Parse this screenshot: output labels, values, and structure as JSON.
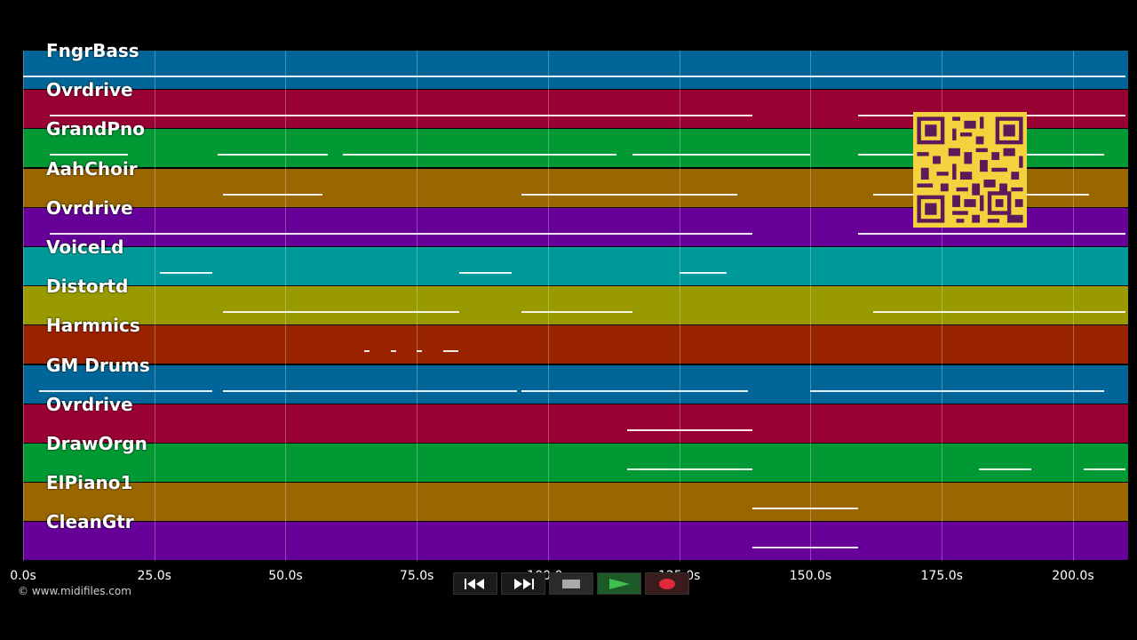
{
  "tracks": [
    {
      "name": "FngrBass",
      "color": "#006699"
    },
    {
      "name": "Ovrdrive",
      "color": "#990033"
    },
    {
      "name": "GrandPno",
      "color": "#009933"
    },
    {
      "name": "AahChoir",
      "color": "#996600"
    },
    {
      "name": "Ovrdrive",
      "color": "#660099"
    },
    {
      "name": "VoiceLd",
      "color": "#009999"
    },
    {
      "name": "Distortd",
      "color": "#999900"
    },
    {
      "name": "Harmnics",
      "color": "#992200"
    },
    {
      "name": "GM Drums",
      "color": "#006699"
    },
    {
      "name": "Ovrdrive",
      "color": "#990033"
    },
    {
      "name": "DrawOrgn",
      "color": "#009933"
    },
    {
      "name": "ElPiano1",
      "color": "#996600"
    },
    {
      "name": "CleanGtr",
      "color": "#660099"
    }
  ],
  "timeline": {
    "ticks": [
      "0.0s",
      "25.0s",
      "50.0s",
      "75.0s",
      "100.0s",
      "125.0s",
      "150.0s",
      "175.0s",
      "200.0s"
    ],
    "tick_values": [
      0,
      25,
      50,
      75,
      100,
      125,
      150,
      175,
      200
    ],
    "max_seconds": 210.5
  },
  "notes": [
    {
      "track": 0,
      "segments": [
        [
          0,
          210
        ]
      ]
    },
    {
      "track": 1,
      "segments": [
        [
          5,
          139
        ],
        [
          159,
          210
        ]
      ]
    },
    {
      "track": 2,
      "segments": [
        [
          5,
          20
        ],
        [
          37,
          58
        ],
        [
          61,
          113
        ],
        [
          116,
          150
        ],
        [
          159,
          206
        ]
      ]
    },
    {
      "track": 3,
      "segments": [
        [
          38,
          57
        ],
        [
          95,
          136
        ],
        [
          162,
          203
        ]
      ]
    },
    {
      "track": 4,
      "segments": [
        [
          5,
          139
        ],
        [
          159,
          210
        ]
      ]
    },
    {
      "track": 5,
      "segments": [
        [
          26,
          36
        ],
        [
          83,
          93
        ],
        [
          125,
          134
        ]
      ]
    },
    {
      "track": 6,
      "segments": [
        [
          38,
          83
        ],
        [
          95,
          116
        ],
        [
          162,
          210
        ]
      ]
    },
    {
      "track": 7,
      "segments": [
        [
          65,
          66
        ],
        [
          70,
          71
        ],
        [
          75,
          76
        ],
        [
          80,
          83
        ]
      ]
    },
    {
      "track": 8,
      "segments": [
        [
          3,
          36
        ],
        [
          38,
          94
        ],
        [
          95,
          138
        ],
        [
          150,
          206
        ]
      ]
    },
    {
      "track": 9,
      "segments": [
        [
          115,
          139
        ]
      ]
    },
    {
      "track": 10,
      "segments": [
        [
          115,
          139
        ],
        [
          182,
          192
        ],
        [
          202,
          210
        ]
      ]
    },
    {
      "track": 11,
      "segments": [
        [
          139,
          159
        ]
      ]
    },
    {
      "track": 12,
      "segments": [
        [
          139,
          159
        ]
      ]
    }
  ],
  "copyright": "© www.midifiles.com",
  "transport": {
    "rewind": "rewind-icon",
    "forward": "fast-forward-icon",
    "stop": "stop-icon",
    "play": "play-icon",
    "record": "record-icon"
  }
}
